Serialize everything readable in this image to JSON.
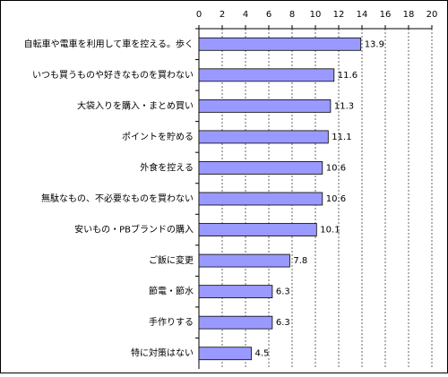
{
  "chart_data": {
    "type": "bar",
    "orientation": "horizontal",
    "categories": [
      "自転車や電車を利用して車を控える。歩く",
      "いつも買うものや好きなものを買わない",
      "大袋入りを購入・まとめ買い",
      "ポイントを貯める",
      "外食を控える",
      "無駄なもの、不必要なものを買わない",
      "安いもの・PBブランドの購入",
      "ご飯に変更",
      "節電・節水",
      "手作りする",
      "特に対策はない"
    ],
    "values": [
      13.9,
      11.6,
      11.3,
      11.1,
      10.6,
      10.6,
      10.1,
      7.8,
      6.3,
      6.3,
      4.5
    ],
    "color": "#9999ff",
    "xlim": [
      0,
      20
    ],
    "xticks": [
      0,
      2,
      4,
      6,
      8,
      10,
      12,
      14,
      16,
      18,
      20
    ],
    "grid": true
  }
}
